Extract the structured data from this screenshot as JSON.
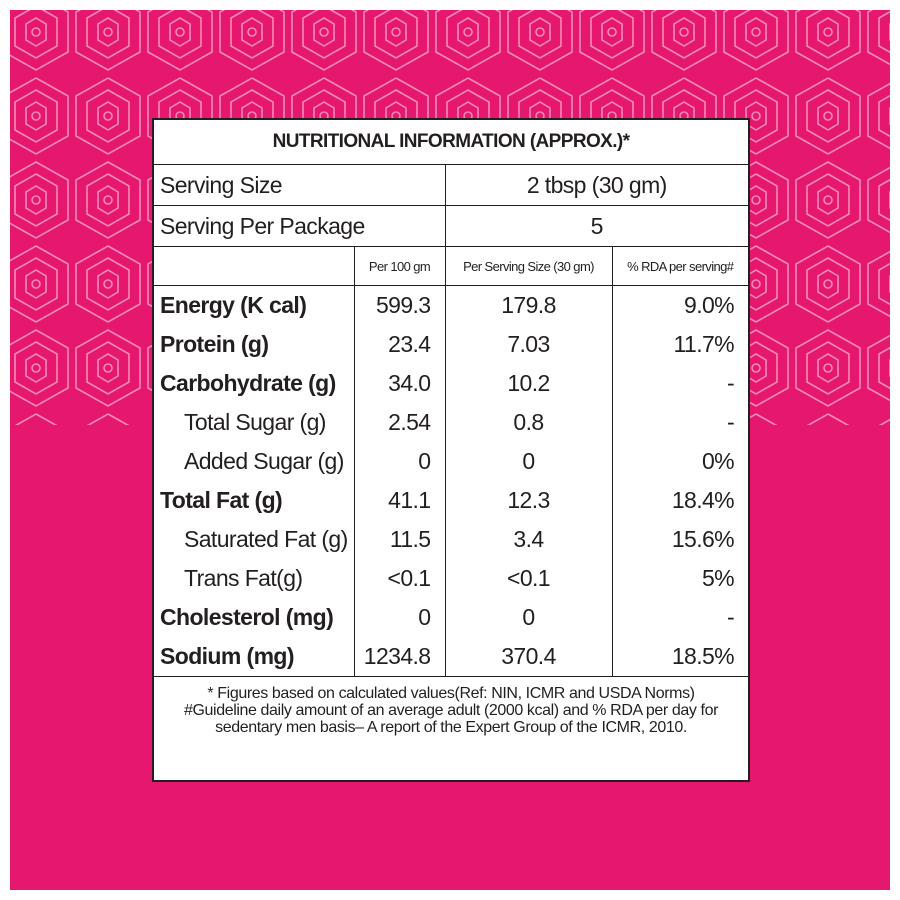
{
  "header": {
    "title": "NUTRITIONAL INFORMATION (APPROX.)*"
  },
  "serving": [
    {
      "label": "Serving Size",
      "value": "2 tbsp (30 gm)"
    },
    {
      "label": "Serving Per Package",
      "value": "5"
    }
  ],
  "table": {
    "columns": [
      "Per 100 gm",
      "Per Serving Size (30 gm)",
      "% RDA per serving#"
    ],
    "nutrients": [
      {
        "name": "Energy (K cal)",
        "values": [
          "599.3",
          "179.8",
          "9.0%"
        ],
        "sub": []
      },
      {
        "name": "Protein (g)",
        "values": [
          "23.4",
          "7.03",
          "11.7%"
        ],
        "sub": []
      },
      {
        "name": "Carbohydrate (g)",
        "values": [
          "34.0",
          "10.2",
          "-"
        ],
        "sub": [
          {
            "name": "Total Sugar (g)",
            "values": [
              "2.54",
              "0.8",
              "-"
            ]
          },
          {
            "name": "Added Sugar (g)",
            "values": [
              "0",
              "0",
              "0%"
            ]
          }
        ]
      },
      {
        "name": "Total Fat (g)",
        "values": [
          "41.1",
          "12.3",
          "18.4%"
        ],
        "sub": [
          {
            "name": "Saturated Fat (g)",
            "values": [
              "11.5",
              "3.4",
              "15.6%"
            ]
          },
          {
            "name": "Trans Fat(g)",
            "values": [
              "<0.1",
              "<0.1",
              "5%"
            ]
          }
        ]
      },
      {
        "name": "Cholesterol (mg)",
        "values": [
          "0",
          "0",
          "-"
        ],
        "sub": []
      },
      {
        "name": "Sodium (mg)",
        "values": [
          "1234.8",
          "370.4",
          "18.5%"
        ],
        "sub": []
      }
    ]
  },
  "footnotes": [
    "* Figures based on calculated values(Ref: NIN, ICMR and USDA Norms)",
    "#Guideline daily amount of an average adult (2000 kcal) and % RDA per day for sedentary men basis– A report of the Expert Group of the ICMR, 2010."
  ]
}
